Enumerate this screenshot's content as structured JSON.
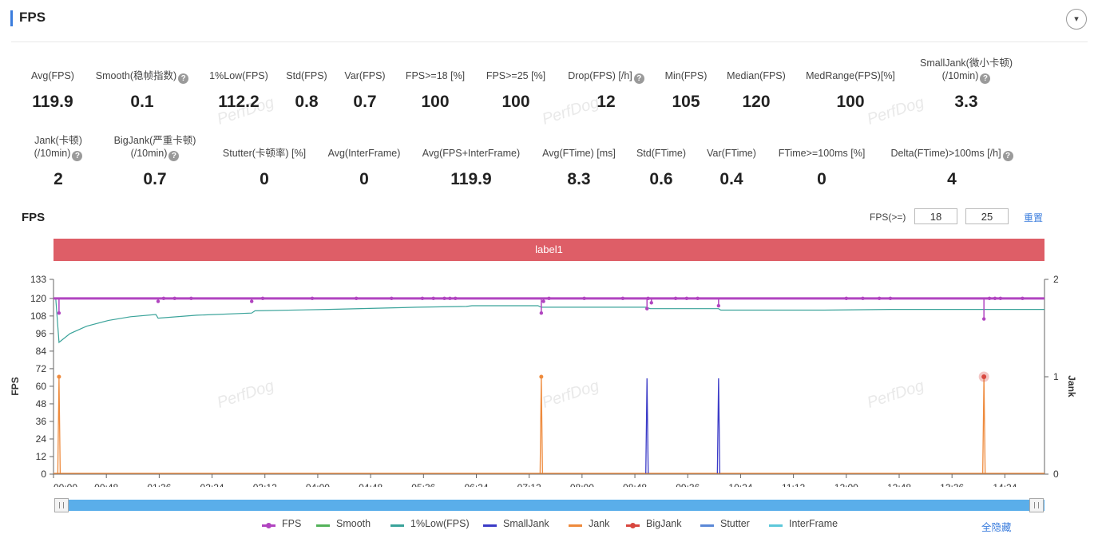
{
  "header": {
    "title": "FPS",
    "collapse_icon": "▾"
  },
  "metrics_row1": [
    {
      "label": "Avg(FPS)",
      "value": "119.9",
      "help": false
    },
    {
      "label": "Smooth(稳帧指数)",
      "value": "0.1",
      "help": true
    },
    {
      "label": "1%Low(FPS)",
      "value": "112.2",
      "help": false
    },
    {
      "label": "Std(FPS)",
      "value": "0.8",
      "help": false
    },
    {
      "label": "Var(FPS)",
      "value": "0.7",
      "help": false
    },
    {
      "label": "FPS>=18 [%]",
      "value": "100",
      "help": false
    },
    {
      "label": "FPS>=25 [%]",
      "value": "100",
      "help": false
    },
    {
      "label": "Drop(FPS) [/h]",
      "value": "12",
      "help": true
    },
    {
      "label": "Min(FPS)",
      "value": "105",
      "help": false
    },
    {
      "label": "Median(FPS)",
      "value": "120",
      "help": false
    },
    {
      "label": "MedRange(FPS)[%]",
      "value": "100",
      "help": false
    },
    {
      "label": "SmallJank(微小卡顿)",
      "label2": "(/10min)",
      "value": "3.3",
      "help": true
    }
  ],
  "metrics_row2": [
    {
      "label": "Jank(卡顿)",
      "label2": "(/10min)",
      "value": "2",
      "help": true
    },
    {
      "label": "BigJank(严重卡顿)",
      "label2": "(/10min)",
      "value": "0.7",
      "help": true
    },
    {
      "label": "Stutter(卡顿率) [%]",
      "value": "0",
      "help": false
    },
    {
      "label": "Avg(InterFrame)",
      "value": "0",
      "help": false
    },
    {
      "label": "Avg(FPS+InterFrame)",
      "value": "119.9",
      "help": false
    },
    {
      "label": "Avg(FTime) [ms]",
      "value": "8.3",
      "help": false
    },
    {
      "label": "Std(FTime)",
      "value": "0.6",
      "help": false
    },
    {
      "label": "Var(FTime)",
      "value": "0.4",
      "help": false
    },
    {
      "label": "FTime>=100ms [%]",
      "value": "0",
      "help": false
    },
    {
      "label": "Delta(FTime)>100ms [/h]",
      "value": "4",
      "help": true
    }
  ],
  "watermark_text": "PerfDog",
  "chart_section": {
    "title": "FPS",
    "threshold_label": "FPS(>=)",
    "threshold_low": "18",
    "threshold_high": "25",
    "reset_label": "重置",
    "band_label": "label1",
    "hide_all_label": "全隐藏"
  },
  "chart_data": {
    "type": "line",
    "ylabel": "FPS",
    "ylabel_right": "Jank",
    "y_ticks": [
      "133",
      "120",
      "108",
      "96",
      "84",
      "72",
      "60",
      "48",
      "36",
      "24",
      "12",
      "0"
    ],
    "y_right_ticks": [
      "2",
      "1",
      "0"
    ],
    "ylim": [
      0,
      133
    ],
    "ylim_right": [
      0,
      2
    ],
    "x_ticks": [
      "00:00",
      "00:48",
      "01:36",
      "02:24",
      "03:12",
      "04:00",
      "04:48",
      "05:36",
      "06:24",
      "07:12",
      "08:00",
      "08:48",
      "09:36",
      "10:24",
      "11:12",
      "12:00",
      "12:48",
      "13:36",
      "14:24"
    ],
    "x_range_seconds": [
      0,
      900
    ],
    "legend_position": "bottom",
    "series": [
      {
        "name": "FPS",
        "color": "#b145c0",
        "baseline": 120,
        "dips": [
          [
            5,
            110
          ],
          [
            95,
            118
          ],
          [
            180,
            118
          ],
          [
            445,
            118
          ],
          [
            443,
            110
          ],
          [
            539,
            113
          ],
          [
            543,
            117
          ],
          [
            604,
            115
          ],
          [
            845,
            106
          ]
        ]
      },
      {
        "name": "Smooth",
        "color": "#54b25a"
      },
      {
        "name": "1%Low(FPS)",
        "color": "#3aa39a",
        "points": [
          [
            2,
            120
          ],
          [
            5,
            90
          ],
          [
            15,
            96
          ],
          [
            30,
            101
          ],
          [
            50,
            105
          ],
          [
            70,
            107.5
          ],
          [
            93,
            109
          ],
          [
            95,
            106.5
          ],
          [
            130,
            108.5
          ],
          [
            180,
            110
          ],
          [
            183,
            111.5
          ],
          [
            250,
            112.5
          ],
          [
            330,
            114
          ],
          [
            375,
            114.5
          ],
          [
            380,
            115
          ],
          [
            440,
            115
          ],
          [
            443,
            114
          ],
          [
            538,
            114
          ],
          [
            542,
            113
          ],
          [
            604,
            113
          ],
          [
            606,
            112
          ],
          [
            700,
            112
          ],
          [
            760,
            112.5
          ],
          [
            845,
            112.5
          ],
          [
            860,
            112.5
          ],
          [
            900,
            112.5
          ]
        ]
      },
      {
        "name": "SmallJank",
        "color": "#3b3bc7",
        "spikes_right_axis": [
          [
            539,
            1
          ],
          [
            604,
            1
          ]
        ]
      },
      {
        "name": "Jank",
        "color": "#ee8a3c",
        "spikes_right_axis": [
          [
            5,
            1
          ],
          [
            443,
            1
          ],
          [
            845,
            1
          ]
        ]
      },
      {
        "name": "BigJank",
        "color": "#d8473f",
        "spikes_right_axis": [
          [
            845,
            1
          ]
        ]
      },
      {
        "name": "Stutter",
        "color": "#5b88d6"
      },
      {
        "name": "InterFrame",
        "color": "#5dc8da"
      }
    ]
  }
}
